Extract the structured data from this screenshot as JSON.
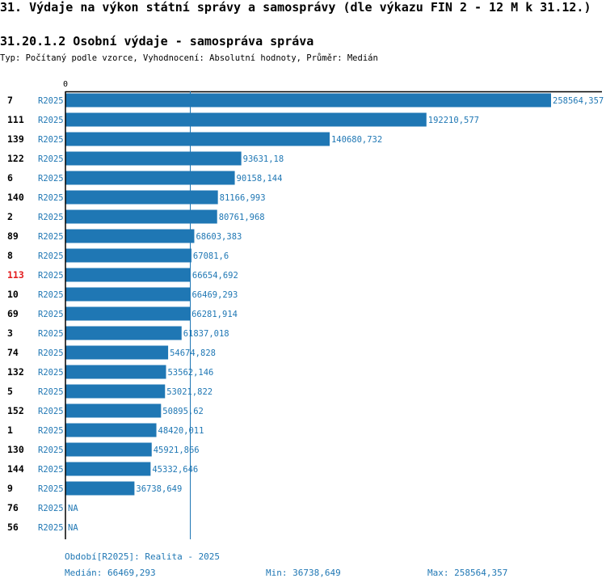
{
  "page": {
    "title": "31. Výdaje na výkon státní správy a samosprávy (dle výkazu FIN 2 - 12 M k 31.12.)",
    "subtitle": "31.20.1.2 Osobní výdaje - samospráva správa",
    "type_line": "Typ: Počítaný podle vzorce, Vyhodnocení: Absolutní hodnoty, Průměr: Medián"
  },
  "colors": {
    "bar": "#1f77b4",
    "label": "#1f77b4",
    "highlight": "#e31a1c",
    "axis": "#000000"
  },
  "chart_data": {
    "type": "bar",
    "orientation": "horizontal",
    "x_axis_zero_label": "0",
    "xlim": [
      0,
      258564.357
    ],
    "highlight_category": "113",
    "median_value": 66469.293,
    "categories": [
      "7",
      "111",
      "139",
      "122",
      "6",
      "140",
      "2",
      "89",
      "8",
      "113",
      "10",
      "69",
      "3",
      "74",
      "132",
      "5",
      "152",
      "1",
      "130",
      "144",
      "9",
      "76",
      "56"
    ],
    "series_label": "R2025",
    "values": [
      258564.357,
      192210.577,
      140680.732,
      93631.18,
      90158.144,
      81166.993,
      80761.968,
      68603.383,
      67081.6,
      66654.692,
      66469.293,
      66281.914,
      61837.018,
      54674.828,
      53562.146,
      53021.822,
      50895.62,
      48420.011,
      45921.866,
      45332.646,
      36738.649,
      null,
      null
    ],
    "value_labels": [
      "258564,357",
      "192210,577",
      "140680,732",
      "93631,18",
      "90158,144",
      "81166,993",
      "80761,968",
      "68603,383",
      "67081,6",
      "66654,692",
      "66469,293",
      "66281,914",
      "61837,018",
      "54674,828",
      "53562,146",
      "53021,822",
      "50895,62",
      "48420,011",
      "45921,866",
      "45332,646",
      "36738,649",
      "NA",
      "NA"
    ]
  },
  "footer": {
    "period": "Období[R2025]: Realita - 2025",
    "median": "Medián: 66469,293",
    "min": "Min: 36738,649",
    "max": "Max: 258564,357"
  }
}
